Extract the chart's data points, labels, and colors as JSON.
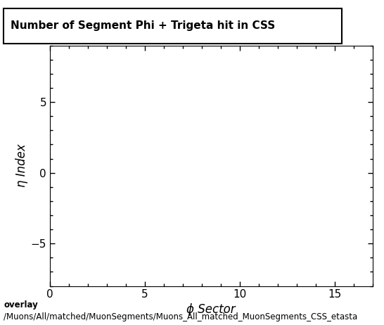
{
  "title": "Number of Segment Phi + Trigeta hit in CSS",
  "xlabel": "ϕ Sector",
  "ylabel": "η Index",
  "xlim": [
    0,
    17
  ],
  "ylim": [
    -8,
    9
  ],
  "xticks": [
    0,
    5,
    10,
    15
  ],
  "yticks": [
    -5,
    0,
    5
  ],
  "background_color": "#ffffff",
  "plot_bg_color": "#ffffff",
  "caption_line1": "overlay",
  "caption_line2": "/Muons/All/matched/MuonSegments/Muons_All_matched_MuonSegments_CSS_etasta",
  "title_fontsize": 11,
  "axis_label_fontsize": 12,
  "tick_fontsize": 11,
  "caption_fontsize": 8.5
}
